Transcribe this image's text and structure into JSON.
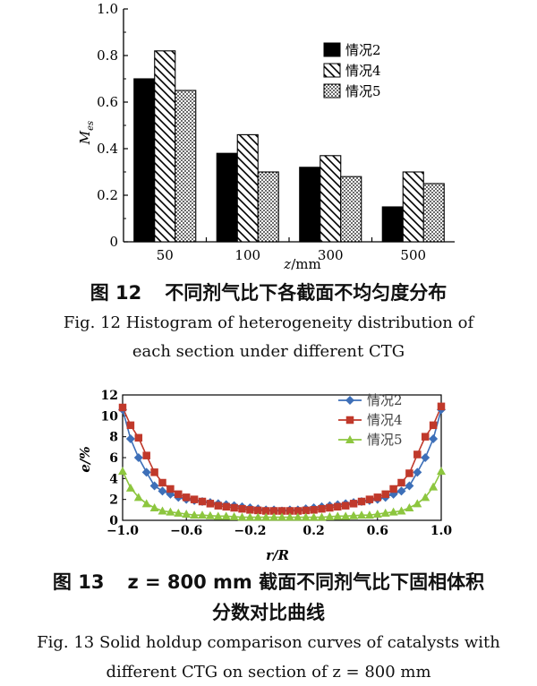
{
  "chart_data": [
    {
      "type": "bar",
      "categories": [
        "50",
        "100",
        "300",
        "500"
      ],
      "series": [
        {
          "name": "情况2",
          "values": [
            0.7,
            0.38,
            0.32,
            0.15
          ],
          "pattern": "solid"
        },
        {
          "name": "情况4",
          "values": [
            0.82,
            0.46,
            0.37,
            0.3
          ],
          "pattern": "hatch"
        },
        {
          "name": "情况5",
          "values": [
            0.65,
            0.3,
            0.28,
            0.25
          ],
          "pattern": "dots"
        }
      ],
      "xlabel_var": "z",
      "xlabel_unit": "/mm",
      "ylabel_var": "M",
      "ylabel_sub": "es",
      "ylim": [
        0,
        1.0
      ],
      "yticks": [
        "0",
        "0.2",
        "0.4",
        "0.6",
        "0.8",
        "1.0"
      ],
      "legend": "top-right",
      "grid": false
    },
    {
      "type": "line",
      "x": [
        -1.0,
        -0.95,
        -0.9,
        -0.85,
        -0.8,
        -0.75,
        -0.7,
        -0.65,
        -0.6,
        -0.55,
        -0.5,
        -0.45,
        -0.4,
        -0.35,
        -0.3,
        -0.25,
        -0.2,
        -0.15,
        -0.1,
        -0.05,
        0.0,
        0.05,
        0.1,
        0.15,
        0.2,
        0.25,
        0.3,
        0.35,
        0.4,
        0.45,
        0.5,
        0.55,
        0.6,
        0.65,
        0.7,
        0.75,
        0.8,
        0.85,
        0.9,
        0.95,
        1.0
      ],
      "series": [
        {
          "name": "情况2",
          "color": "#3d6fb8",
          "marker": "diamond",
          "values": [
            10.6,
            7.8,
            6.0,
            4.6,
            3.3,
            2.8,
            2.5,
            2.2,
            2.0,
            1.9,
            1.8,
            1.7,
            1.6,
            1.5,
            1.4,
            1.3,
            1.2,
            1.1,
            1.0,
            1.0,
            0.9,
            1.0,
            1.0,
            1.1,
            1.2,
            1.3,
            1.4,
            1.5,
            1.6,
            1.7,
            1.8,
            1.9,
            2.0,
            2.2,
            2.5,
            2.8,
            3.3,
            4.6,
            6.0,
            7.8,
            10.6
          ]
        },
        {
          "name": "情况4",
          "color": "#c0392b",
          "marker": "square",
          "values": [
            10.8,
            9.1,
            7.9,
            6.2,
            4.6,
            3.6,
            3.0,
            2.5,
            2.2,
            2.0,
            1.8,
            1.6,
            1.4,
            1.3,
            1.2,
            1.1,
            1.0,
            0.95,
            0.9,
            0.9,
            0.9,
            0.9,
            0.9,
            0.95,
            1.0,
            1.1,
            1.2,
            1.3,
            1.4,
            1.6,
            1.8,
            2.0,
            2.2,
            2.5,
            3.0,
            3.6,
            4.5,
            6.3,
            8.0,
            9.1,
            10.9
          ]
        },
        {
          "name": "情况5",
          "color": "#8dc63f",
          "marker": "triangle",
          "values": [
            4.7,
            3.1,
            2.2,
            1.6,
            1.2,
            0.9,
            0.8,
            0.7,
            0.6,
            0.5,
            0.5,
            0.45,
            0.4,
            0.4,
            0.35,
            0.3,
            0.3,
            0.3,
            0.3,
            0.3,
            0.3,
            0.3,
            0.3,
            0.3,
            0.3,
            0.3,
            0.35,
            0.4,
            0.4,
            0.45,
            0.5,
            0.5,
            0.6,
            0.7,
            0.8,
            0.9,
            1.2,
            1.6,
            2.2,
            3.2,
            4.7
          ]
        }
      ],
      "xlabel": "r/R",
      "ylabel": "e/%",
      "xlim": [
        -1.0,
        1.0
      ],
      "ylim": [
        0,
        12
      ],
      "xticks": [
        "-1.0",
        "-0.6",
        "-0.2",
        "0.2",
        "0.6",
        "1.0"
      ],
      "yticks": [
        "0",
        "2",
        "4",
        "6",
        "8",
        "10",
        "12"
      ],
      "legend": "top-center",
      "grid": false
    }
  ],
  "captions": {
    "fig12_cn_num": "图 12",
    "fig12_cn": "不同剂气比下各截面不均匀度分布",
    "fig12_en_1": "Fig. 12    Histogram of heterogeneity distribution of",
    "fig12_en_2": "each section under different CTG",
    "fig13_cn_num": "图 13",
    "fig13_cn_1": "z = 800 mm 截面不同剂气比下固相体积",
    "fig13_cn_2": "分数对比曲线",
    "fig13_en_1": "Fig. 13    Solid holdup comparison curves of catalysts with",
    "fig13_en_2": "different CTG on section of z = 800 mm"
  }
}
